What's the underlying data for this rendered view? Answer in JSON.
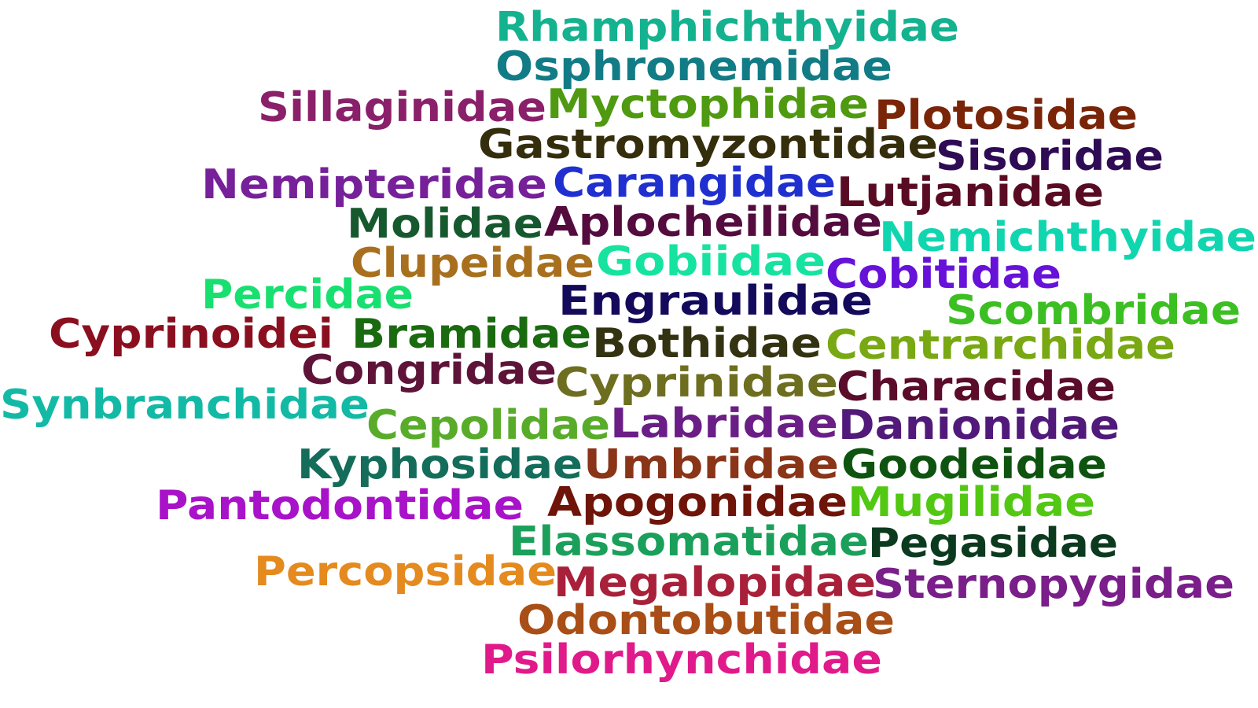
{
  "words": [
    {
      "text": "Rhamphichthyidae",
      "color": "#14b28f"
    },
    {
      "text": "Osphronemidae",
      "color": "#127c86"
    },
    {
      "text": "Sillaginidae",
      "color": "#8a1f6a"
    },
    {
      "text": "Myctophidae",
      "color": "#4f9a10"
    },
    {
      "text": "Plotosidae",
      "color": "#7a2508"
    },
    {
      "text": "Gastromyzontidae",
      "color": "#352e0c"
    },
    {
      "text": "Sisoridae",
      "color": "#2e0b54"
    },
    {
      "text": "Nemipteridae",
      "color": "#76209a"
    },
    {
      "text": "Carangidae",
      "color": "#2030d0"
    },
    {
      "text": "Lutjanidae",
      "color": "#5a0b24"
    },
    {
      "text": "Molidae",
      "color": "#17592e"
    },
    {
      "text": "Aplocheilidae",
      "color": "#540b3e"
    },
    {
      "text": "Nemichthyidae",
      "color": "#10d6b0"
    },
    {
      "text": "Clupeidae",
      "color": "#a8701e"
    },
    {
      "text": "Gobiidae",
      "color": "#16e39f"
    },
    {
      "text": "Cobitidae",
      "color": "#6612d8"
    },
    {
      "text": "Percidae",
      "color": "#18e070"
    },
    {
      "text": "Engraulidae",
      "color": "#140a5c"
    },
    {
      "text": "Scombridae",
      "color": "#3cbf22"
    },
    {
      "text": "Cyprinoidei",
      "color": "#8a1020"
    },
    {
      "text": "Bramidae",
      "color": "#1a6a10"
    },
    {
      "text": "Bothidae",
      "color": "#333312"
    },
    {
      "text": "Centrarchidae",
      "color": "#78a812"
    },
    {
      "text": "Congridae",
      "color": "#5e1438"
    },
    {
      "text": "Cyprinidae",
      "color": "#6e6e20"
    },
    {
      "text": "Characidae",
      "color": "#5a0c2a"
    },
    {
      "text": "Synbranchidae",
      "color": "#12baa6"
    },
    {
      "text": "Cepolidae",
      "color": "#58ac2a"
    },
    {
      "text": "Labridae",
      "color": "#6a1e86"
    },
    {
      "text": "Danionidae",
      "color": "#511a7a"
    },
    {
      "text": "Kyphosidae",
      "color": "#136d5a"
    },
    {
      "text": "Umbridae",
      "color": "#8a3418"
    },
    {
      "text": "Goodeidae",
      "color": "#0e5410"
    },
    {
      "text": "Pantodontidae",
      "color": "#a812c8"
    },
    {
      "text": "Apogonidae",
      "color": "#6e1408"
    },
    {
      "text": "Mugilidae",
      "color": "#52c812"
    },
    {
      "text": "Elassomatidae",
      "color": "#1aa05a"
    },
    {
      "text": "Pegasidae",
      "color": "#0c3a1e"
    },
    {
      "text": "Percopsidae",
      "color": "#e48a1e"
    },
    {
      "text": "Megalopidae",
      "color": "#a8203a"
    },
    {
      "text": "Sternopygidae",
      "color": "#7a1e8a"
    },
    {
      "text": "Odontobutidae",
      "color": "#a84e16"
    },
    {
      "text": "Psilorhynchidae",
      "color": "#e01a8a"
    }
  ]
}
